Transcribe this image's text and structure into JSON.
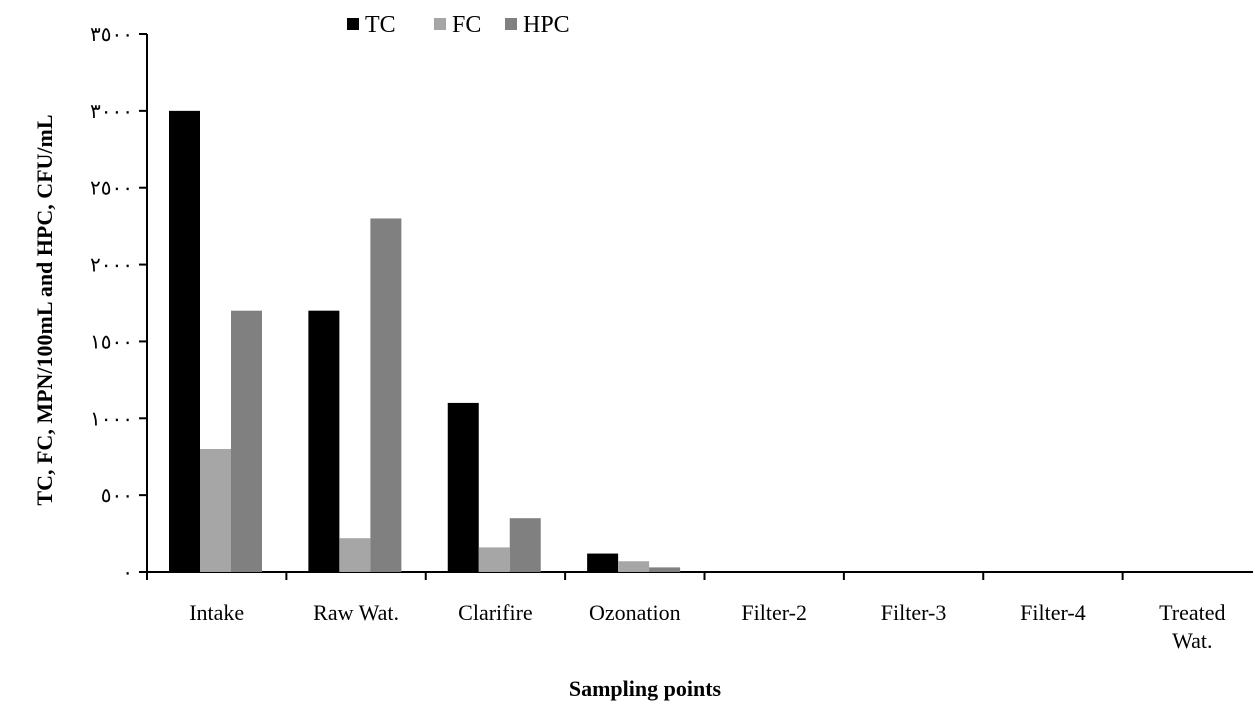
{
  "chart_data": {
    "type": "bar",
    "title": "",
    "xlabel": "Sampling points",
    "ylabel": "TC, FC, MPN/100mL and HPC, CFU/mL",
    "ylim": [
      0,
      3500
    ],
    "yticks": [
      0,
      500,
      1000,
      1500,
      2000,
      2500,
      3000,
      3500
    ],
    "ytick_labels": [
      "٠",
      "٥٠٠",
      "١٠٠٠",
      "١٥٠٠",
      "٢٠٠٠",
      "٢٥٠٠",
      "٣٠٠٠",
      "٣٥٠٠"
    ],
    "categories": [
      [
        "Intake"
      ],
      [
        "Raw Wat."
      ],
      [
        "Clarifire"
      ],
      [
        "Ozonation"
      ],
      [
        "Filter-2"
      ],
      [
        "Filter-3"
      ],
      [
        "Filter-4"
      ],
      [
        "Treated",
        "Wat."
      ]
    ],
    "series": [
      {
        "name": "TC",
        "color": "#000000",
        "values": [
          3000,
          1700,
          1100,
          120,
          0,
          0,
          0,
          0
        ]
      },
      {
        "name": "FC",
        "color": "#a6a6a6",
        "values": [
          800,
          220,
          160,
          70,
          0,
          0,
          0,
          0
        ]
      },
      {
        "name": "HPC",
        "color": "#808080",
        "values": [
          1700,
          2300,
          350,
          30,
          0,
          0,
          0,
          0
        ]
      }
    ],
    "legend_position": "top-center",
    "grid": false
  }
}
